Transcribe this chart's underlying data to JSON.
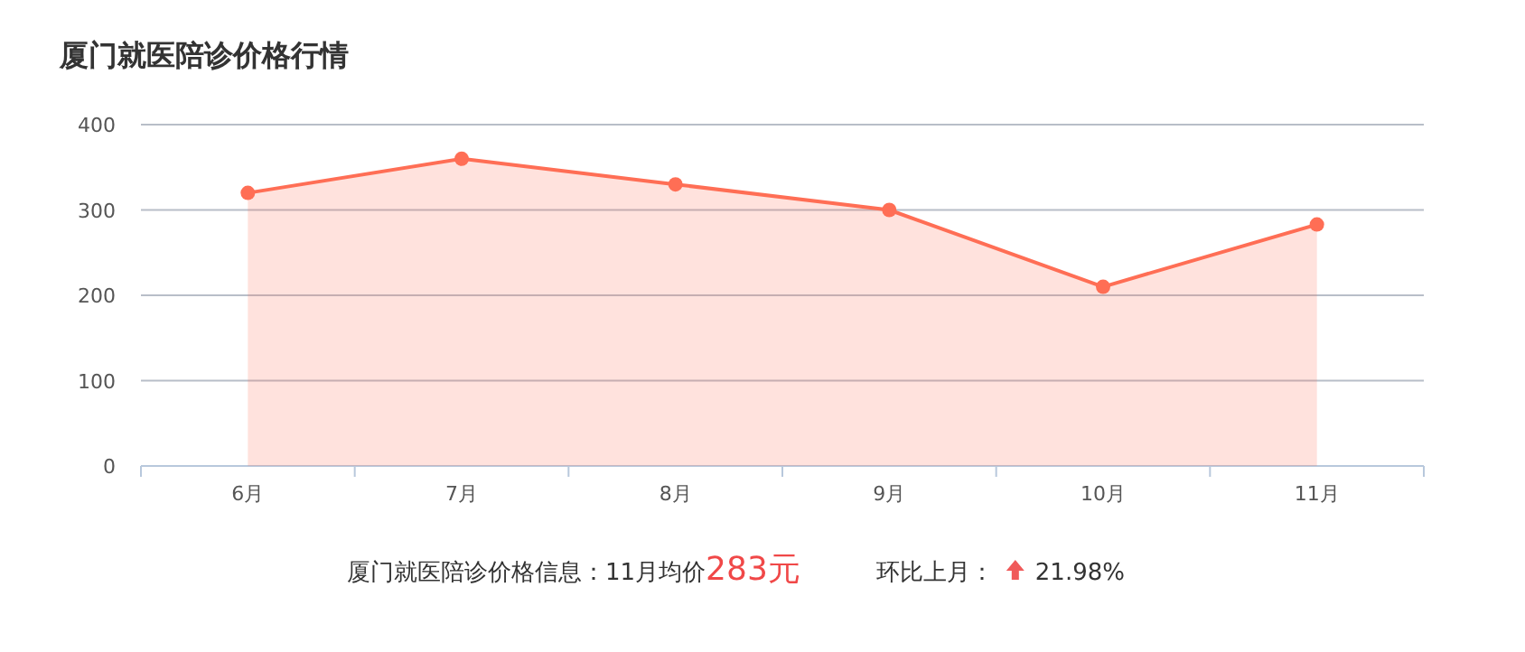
{
  "chart_data": {
    "type": "area",
    "title": "厦门就医陪诊价格行情",
    "categories": [
      "6月",
      "7月",
      "8月",
      "9月",
      "10月",
      "11月"
    ],
    "values": [
      320,
      360,
      330,
      300,
      210,
      283
    ],
    "color": "#ff6e55",
    "ylim": [
      0,
      400
    ],
    "yticks": [
      0,
      100,
      200,
      300,
      400
    ],
    "grid": "y",
    "marker": "circle",
    "annotations": [
      "厦门就医陪诊价格信息：11月均价",
      "283元",
      "环比上月：",
      "21.98%"
    ]
  }
}
